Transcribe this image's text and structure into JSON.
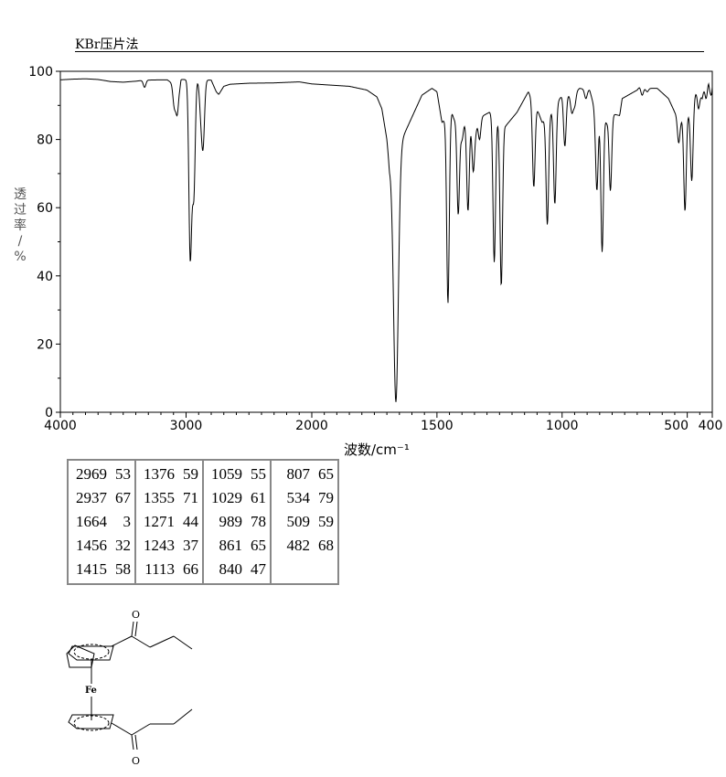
{
  "method": "KBr压片法",
  "chart_data": {
    "type": "line",
    "title": "",
    "xlabel": "波数/cm⁻¹",
    "ylabel_chars": [
      "透",
      "过",
      "率",
      "/",
      "%"
    ],
    "xlim": [
      4000,
      400
    ],
    "ylim": [
      0,
      100
    ],
    "x_ticks": [
      4000,
      3000,
      2000,
      1500,
      1000,
      500,
      400
    ],
    "y_ticks": [
      0,
      20,
      40,
      60,
      80,
      100
    ],
    "axis_break_wavenumber": 2000,
    "baseline": [
      [
        4000,
        97.5
      ],
      [
        3900,
        97.7
      ],
      [
        3800,
        97.8
      ],
      [
        3700,
        97.6
      ],
      [
        3600,
        97.0
      ],
      [
        3500,
        96.8
      ],
      [
        3400,
        97.1
      ],
      [
        3330,
        97.4
      ],
      [
        3200,
        97.5
      ],
      [
        3150,
        97.5
      ],
      [
        3100,
        96.2
      ],
      [
        3050,
        95.5
      ],
      [
        3040,
        97.6
      ],
      [
        2800,
        97.4
      ],
      [
        2760,
        94.0
      ],
      [
        2740,
        93.2
      ],
      [
        2700,
        95.6
      ],
      [
        2650,
        96.2
      ],
      [
        2500,
        96.5
      ],
      [
        2300,
        96.6
      ],
      [
        2100,
        96.9
      ],
      [
        2000,
        96.3
      ],
      [
        1850,
        95.6
      ],
      [
        1780,
        94.5
      ],
      [
        1740,
        92.5
      ],
      [
        1720,
        89.0
      ],
      [
        1700,
        80.0
      ],
      [
        1690,
        72.0
      ],
      [
        1560,
        93.0
      ],
      [
        1520,
        95.0
      ],
      [
        1500,
        94.0
      ],
      [
        1480,
        85.0
      ],
      [
        1435,
        88.5
      ],
      [
        1395,
        85.0
      ],
      [
        1315,
        87.0
      ],
      [
        1290,
        88.0
      ],
      [
        1225,
        84.0
      ],
      [
        1180,
        88.0
      ],
      [
        1150,
        92.0
      ],
      [
        1135,
        94.0
      ],
      [
        1095,
        88.0
      ],
      [
        1080,
        85.0
      ],
      [
        1045,
        88.0
      ],
      [
        1000,
        93.0
      ],
      [
        965,
        93.0
      ],
      [
        930,
        95.0
      ],
      [
        890,
        94.5
      ],
      [
        870,
        89.0
      ],
      [
        825,
        88.0
      ],
      [
        770,
        87.0
      ],
      [
        760,
        92.0
      ],
      [
        700,
        94.5
      ],
      [
        690,
        95.5
      ],
      [
        665,
        95.0
      ],
      [
        620,
        95.0
      ],
      [
        575,
        92.0
      ],
      [
        550,
        88.0
      ],
      [
        525,
        86.0
      ],
      [
        500,
        90.0
      ],
      [
        475,
        92.0
      ],
      [
        460,
        95.0
      ],
      [
        440,
        92.0
      ],
      [
        430,
        96.0
      ],
      [
        420,
        97.0
      ],
      [
        415,
        98.0
      ],
      [
        410,
        96.0
      ],
      [
        400,
        99.0
      ]
    ],
    "dips": [
      [
        3330,
        95.3
      ],
      [
        3095,
        91.0
      ],
      [
        3085,
        94.0
      ],
      [
        3070,
        88.0
      ],
      [
        2969,
        53
      ],
      [
        2955,
        79
      ],
      [
        2937,
        67
      ],
      [
        2885,
        90
      ],
      [
        2870,
        86
      ],
      [
        2860,
        87
      ],
      [
        1664,
        3
      ],
      [
        1456,
        32
      ],
      [
        1440,
        88
      ],
      [
        1430,
        86
      ],
      [
        1415,
        58
      ],
      [
        1400,
        80
      ],
      [
        1376,
        59
      ],
      [
        1355,
        71
      ],
      [
        1345,
        83
      ],
      [
        1330,
        80
      ],
      [
        1271,
        44
      ],
      [
        1243,
        37
      ],
      [
        1113,
        66
      ],
      [
        1059,
        55
      ],
      [
        1029,
        61
      ],
      [
        989,
        78
      ],
      [
        961,
        88
      ],
      [
        950,
        90
      ],
      [
        905,
        92
      ],
      [
        861,
        65
      ],
      [
        840,
        47
      ],
      [
        822,
        85
      ],
      [
        807,
        65
      ],
      [
        734,
        94
      ],
      [
        680,
        93
      ],
      [
        660,
        94
      ],
      [
        534,
        79
      ],
      [
        509,
        59
      ],
      [
        495,
        88
      ],
      [
        482,
        68
      ],
      [
        455,
        89
      ],
      [
        425,
        92
      ],
      [
        405,
        93
      ]
    ],
    "peaks": [
      [
        "2969",
        "53"
      ],
      [
        "2937",
        "67"
      ],
      [
        "1664",
        "3"
      ],
      [
        "1456",
        "32"
      ],
      [
        "1415",
        "58"
      ],
      [
        "1376",
        "59"
      ],
      [
        "1355",
        "71"
      ],
      [
        "1271",
        "44"
      ],
      [
        "1243",
        "37"
      ],
      [
        "1113",
        "66"
      ],
      [
        "1059",
        "55"
      ],
      [
        "1029",
        "61"
      ],
      [
        "989",
        "78"
      ],
      [
        "861",
        "65"
      ],
      [
        "840",
        "47"
      ],
      [
        "807",
        "65"
      ],
      [
        "534",
        "79"
      ],
      [
        "509",
        "59"
      ],
      [
        "482",
        "68"
      ]
    ]
  },
  "structure": {
    "atom_fe": "Fe",
    "atom_o_top": "O",
    "atom_o_bottom": "O"
  }
}
